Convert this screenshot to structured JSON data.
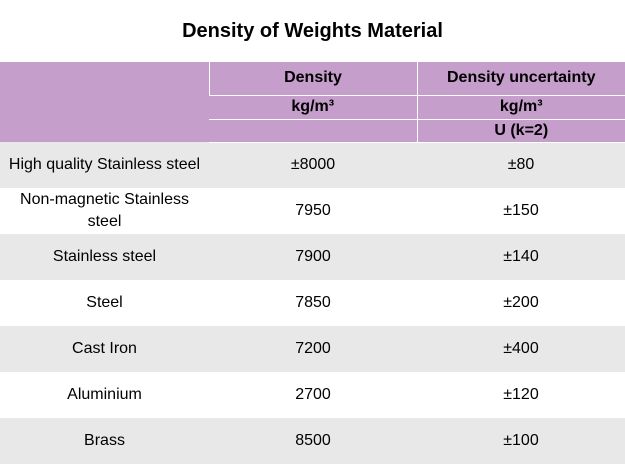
{
  "title": "Density of Weights Material",
  "header": {
    "col2_line1": "Density",
    "col2_line2": "kg/m³",
    "col3_line1": "Density uncertainty",
    "col3_line2": "kg/m³",
    "col3_line3": "U  (k=2)"
  },
  "rows": [
    {
      "material": "High quality Stainless steel",
      "density": "±8000",
      "uncertainty": "±80"
    },
    {
      "material": "Non-magnetic Stainless steel",
      "density": "7950",
      "uncertainty": "±150"
    },
    {
      "material": "Stainless steel",
      "density": "7900",
      "uncertainty": "±140"
    },
    {
      "material": "Steel",
      "density": "7850",
      "uncertainty": "±200"
    },
    {
      "material": "Cast Iron",
      "density": "7200",
      "uncertainty": "±400"
    },
    {
      "material": "Aluminium",
      "density": "2700",
      "uncertainty": "±120"
    },
    {
      "material": "Brass",
      "density": "8500",
      "uncertainty": "±100"
    }
  ],
  "colors": {
    "header_bg": "#c59ecb",
    "row_alt_bg": "#e8e8e8",
    "row_plain_bg": "#ffffff"
  }
}
